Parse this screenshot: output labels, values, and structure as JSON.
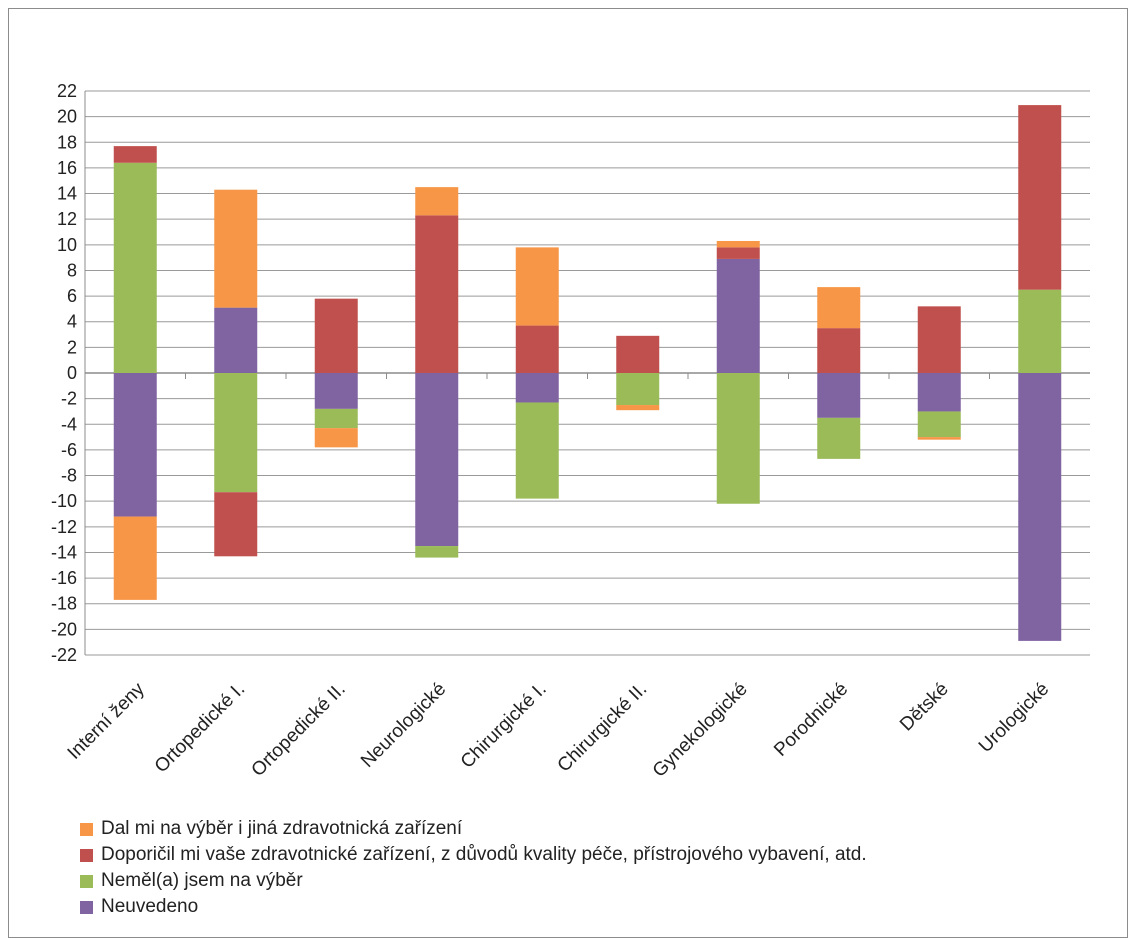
{
  "chart_data": {
    "type": "bar",
    "stacked": true,
    "categories": [
      "Interní ženy",
      "Ortopedické I.",
      "Ortopedické II.",
      "Neurologické",
      "Chirurgické I.",
      "Chirurgické II.",
      "Gynekologické",
      "Porodnické",
      "Dětské",
      "Urologické"
    ],
    "ylim": [
      -22,
      22
    ],
    "yticks": [
      "22",
      "20",
      "18",
      "16",
      "14",
      "12",
      "10",
      "8",
      "6",
      "4",
      "2",
      "0",
      "-2",
      "-4",
      "-6",
      "-8",
      "-10",
      "-12",
      "-14",
      "-16",
      "-18",
      "-20",
      "-22"
    ],
    "grid": true,
    "legend_position": "bottom",
    "series": [
      {
        "name": "Dal mi na výběr i jiná zdravotnická zařízení",
        "color": "#f79646",
        "pos": [
          0,
          9.2,
          0,
          2.2,
          6.1,
          0,
          0.5,
          3.2,
          0,
          0
        ],
        "neg": [
          -6.5,
          0,
          -1.5,
          0,
          0,
          -0.4,
          0,
          0,
          -0.2,
          0
        ]
      },
      {
        "name": "Doporičil mi vaše zdravotnické zařízení, z důvodů kvality péče, přístrojového vybavení, atd.",
        "color": "#c0504d",
        "pos": [
          1.3,
          0,
          5.8,
          12.3,
          3.7,
          2.9,
          0.9,
          3.5,
          5.2,
          14.4
        ],
        "neg": [
          0,
          -5.0,
          0,
          0,
          0,
          0,
          0,
          0,
          0,
          0
        ]
      },
      {
        "name": "Neměl(a) jsem na výběr",
        "color": "#9bbb59",
        "pos": [
          16.4,
          0,
          0,
          0,
          0,
          0,
          0,
          0,
          0,
          6.5
        ],
        "neg": [
          0,
          -9.3,
          -1.5,
          -0.9,
          -7.5,
          -2.5,
          -10.2,
          -3.2,
          -2.0,
          0
        ]
      },
      {
        "name": "Neuvedeno",
        "color": "#8064a2",
        "pos": [
          0,
          5.1,
          0,
          0,
          0,
          0,
          8.9,
          0,
          0,
          0
        ],
        "neg": [
          -11.2,
          0,
          -2.8,
          -13.5,
          -2.3,
          0,
          0,
          -3.5,
          -3.0,
          -20.9
        ]
      }
    ],
    "stack_order": [
      3,
      2,
      1,
      0
    ]
  }
}
